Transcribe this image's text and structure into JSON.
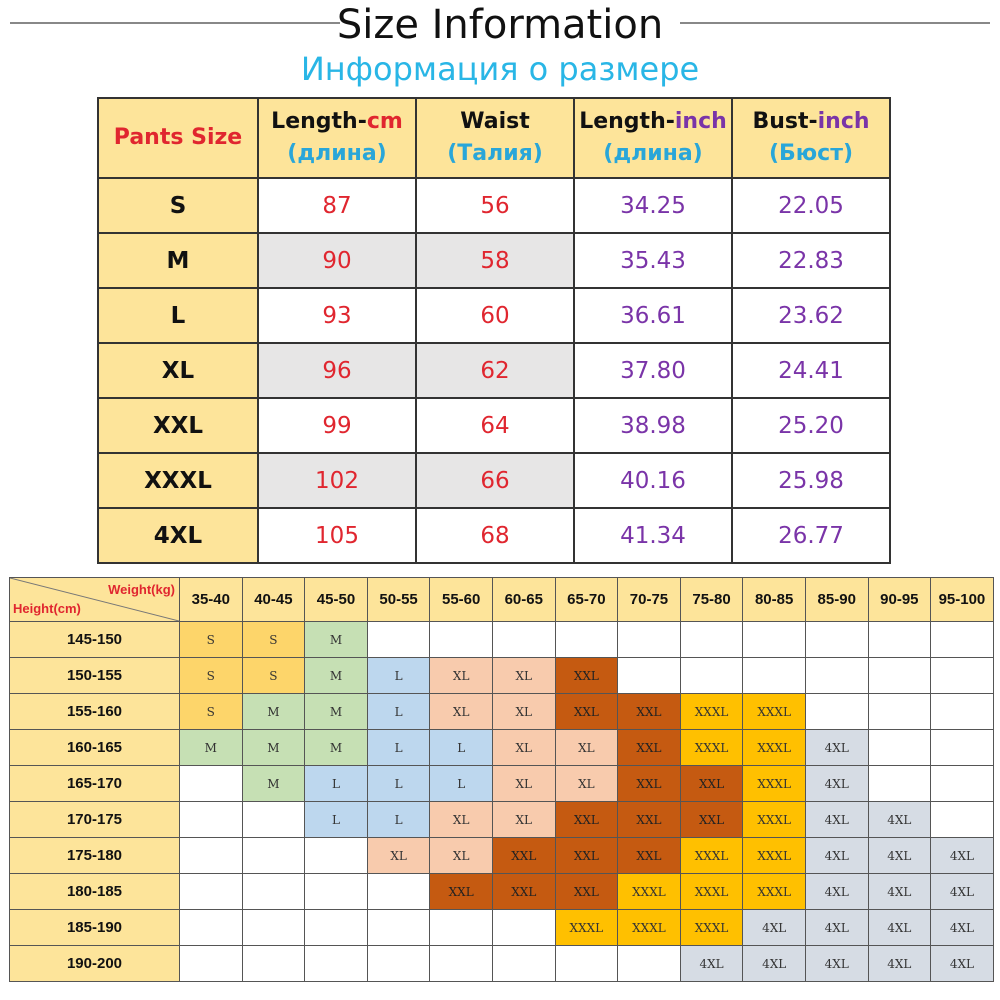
{
  "header": {
    "title": "Size Information",
    "subtitle": "Информация о размере"
  },
  "size_table": {
    "headers": [
      {
        "main": "Pants Size",
        "unit": "",
        "ru": ""
      },
      {
        "main": "Length-",
        "unit": "cm",
        "ru": "(длина)"
      },
      {
        "main": "Waist",
        "unit": "",
        "ru": "(Талия)"
      },
      {
        "main": "Length-",
        "unit": "inch",
        "ru": "(длина)"
      },
      {
        "main": "Bust-",
        "unit": "inch",
        "ru": "(Бюст)"
      }
    ],
    "rows": [
      [
        "S",
        "87",
        "56",
        "34.25",
        "22.05"
      ],
      [
        "M",
        "90",
        "58",
        "35.43",
        "22.83"
      ],
      [
        "L",
        "93",
        "60",
        "36.61",
        "23.62"
      ],
      [
        "XL",
        "96",
        "62",
        "37.80",
        "24.41"
      ],
      [
        "XXL",
        "99",
        "64",
        "38.98",
        "25.20"
      ],
      [
        "XXXL",
        "102",
        "66",
        "40.16",
        "25.98"
      ],
      [
        "4XL",
        "105",
        "68",
        "41.34",
        "26.77"
      ]
    ]
  },
  "size_grid": {
    "weight_label": "Weight(kg)",
    "height_label": "Height(cm)",
    "weights": [
      "35-40",
      "40-45",
      "45-50",
      "50-55",
      "55-60",
      "60-65",
      "65-70",
      "70-75",
      "75-80",
      "80-85",
      "85-90",
      "90-95",
      "95-100"
    ],
    "rows": [
      {
        "height": "145-150",
        "cells": [
          "S",
          "S",
          "M",
          "",
          "",
          "",
          "",
          "",
          "",
          "",
          "",
          "",
          ""
        ]
      },
      {
        "height": "150-155",
        "cells": [
          "S",
          "S",
          "M",
          "L",
          "XL",
          "XL",
          "XXL",
          "",
          "",
          "",
          "",
          "",
          ""
        ]
      },
      {
        "height": "155-160",
        "cells": [
          "S",
          "M",
          "M",
          "L",
          "XL",
          "XL",
          "XXL",
          "XXL",
          "XXXL",
          "XXXL",
          "",
          "",
          ""
        ]
      },
      {
        "height": "160-165",
        "cells": [
          "M",
          "M",
          "M",
          "L",
          "L",
          "XL",
          "XL",
          "XXL",
          "XXXL",
          "XXXL",
          "4XL",
          "",
          ""
        ]
      },
      {
        "height": "165-170",
        "cells": [
          "",
          "M",
          "L",
          "L",
          "L",
          "XL",
          "XL",
          "XXL",
          "XXL",
          "XXXL",
          "4XL",
          "",
          ""
        ]
      },
      {
        "height": "170-175",
        "cells": [
          "",
          "",
          "L",
          "L",
          "XL",
          "XL",
          "XXL",
          "XXL",
          "XXL",
          "XXXL",
          "4XL",
          "4XL",
          ""
        ]
      },
      {
        "height": "175-180",
        "cells": [
          "",
          "",
          "",
          "XL",
          "XL",
          "XXL",
          "XXL",
          "XXL",
          "XXXL",
          "XXXL",
          "4XL",
          "4XL",
          "4XL"
        ]
      },
      {
        "height": "180-185",
        "cells": [
          "",
          "",
          "",
          "",
          "XXL",
          "XXL",
          "XXL",
          "XXXL",
          "XXXL",
          "XXXL",
          "4XL",
          "4XL",
          "4XL"
        ]
      },
      {
        "height": "185-190",
        "cells": [
          "",
          "",
          "",
          "",
          "",
          "",
          "XXXL",
          "XXXL",
          "XXXL",
          "4XL",
          "4XL",
          "4XL",
          "4XL"
        ]
      },
      {
        "height": "190-200",
        "cells": [
          "",
          "",
          "",
          "",
          "",
          "",
          "",
          "",
          "4XL",
          "4XL",
          "4XL",
          "4XL",
          "4XL"
        ]
      }
    ]
  },
  "colors": {
    "header_fill": "#fde49a",
    "accent_red": "#e0262f",
    "accent_purple": "#7a34a8",
    "accent_blue": "#29a6d9",
    "S": "#fdd56a",
    "M": "#c6e0b4",
    "L": "#bdd7ee",
    "XL": "#f8cbad",
    "XXL": "#c55a11",
    "XXXL": "#ffc000",
    "4XL": "#d6dce4"
  }
}
